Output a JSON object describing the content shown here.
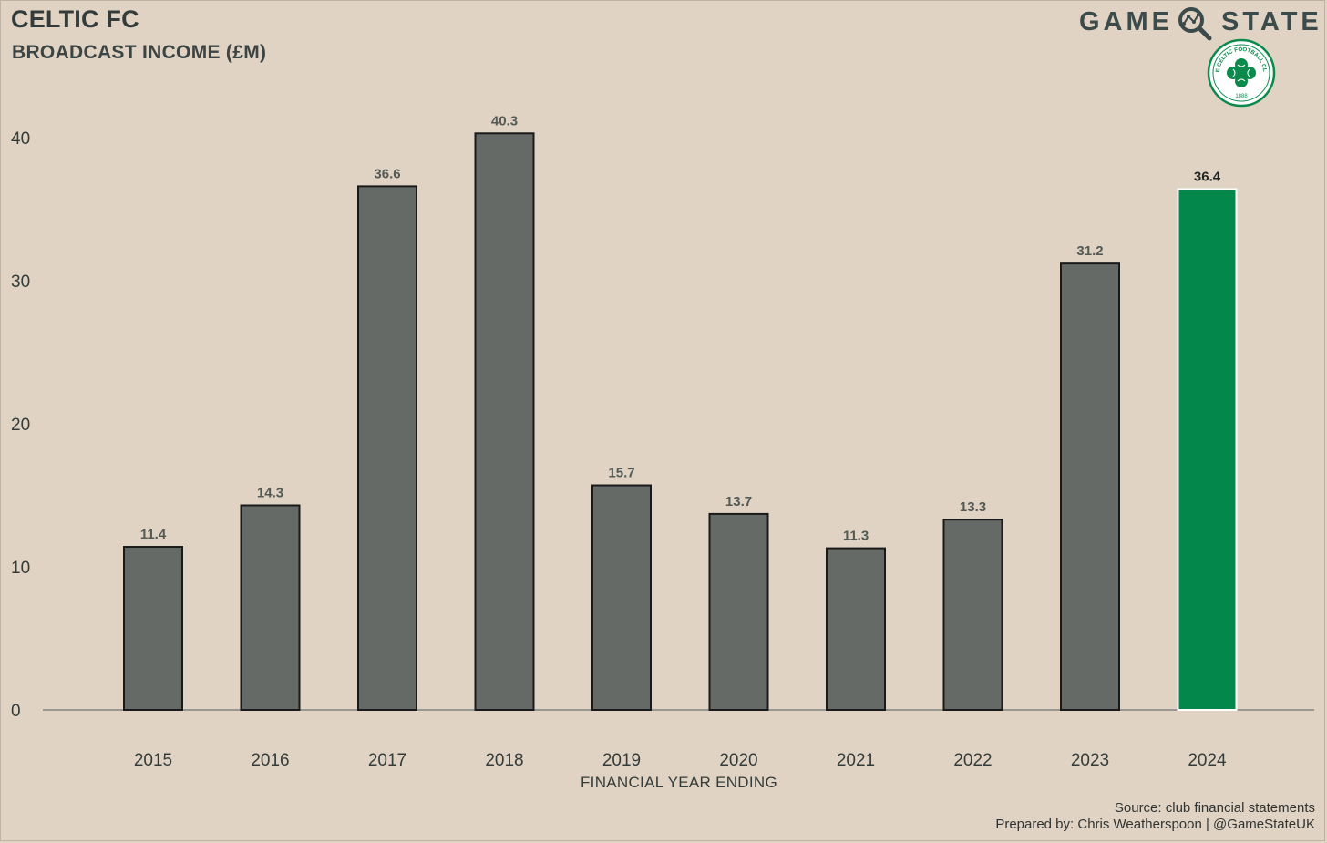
{
  "header": {
    "title": "CELTIC FC",
    "subtitle": "BROADCAST INCOME (£M)"
  },
  "brand": {
    "word_left": "GAME",
    "word_right": "STATE",
    "logo_icon": "magnifier-chart-icon",
    "crest_icon": "celtic-crest-icon",
    "crest_ring_text": "THE CELTIC FOOTBALL CLUB",
    "crest_year": "1888"
  },
  "colors": {
    "background": "#e0d3c3",
    "bar": "#656a66",
    "highlight": "#04874a",
    "text": "#333c3a"
  },
  "footer": {
    "source": "Source: club financial statements",
    "prepared_by": "Prepared by: Chris Weatherspoon | @GameStateUK"
  },
  "chart_data": {
    "type": "bar",
    "title": "CELTIC FC",
    "subtitle": "BROADCAST INCOME (£M)",
    "xlabel": "FINANCIAL YEAR ENDING",
    "ylabel": "",
    "categories": [
      "2015",
      "2016",
      "2017",
      "2018",
      "2019",
      "2020",
      "2021",
      "2022",
      "2023",
      "2024"
    ],
    "values": [
      11.4,
      14.3,
      36.6,
      40.3,
      15.7,
      13.7,
      11.3,
      13.3,
      31.2,
      36.4
    ],
    "value_labels": [
      "11.4",
      "14.3",
      "36.6",
      "40.3",
      "15.7",
      "13.7",
      "11.3",
      "13.3",
      "31.2",
      "36.4"
    ],
    "highlight_category": "2024",
    "ylim": [
      0,
      42
    ],
    "yticks": [
      0,
      10,
      20,
      30,
      40
    ],
    "ytick_labels": [
      "0",
      "10",
      "20",
      "30",
      "40"
    ],
    "grid": false,
    "legend": "none"
  }
}
